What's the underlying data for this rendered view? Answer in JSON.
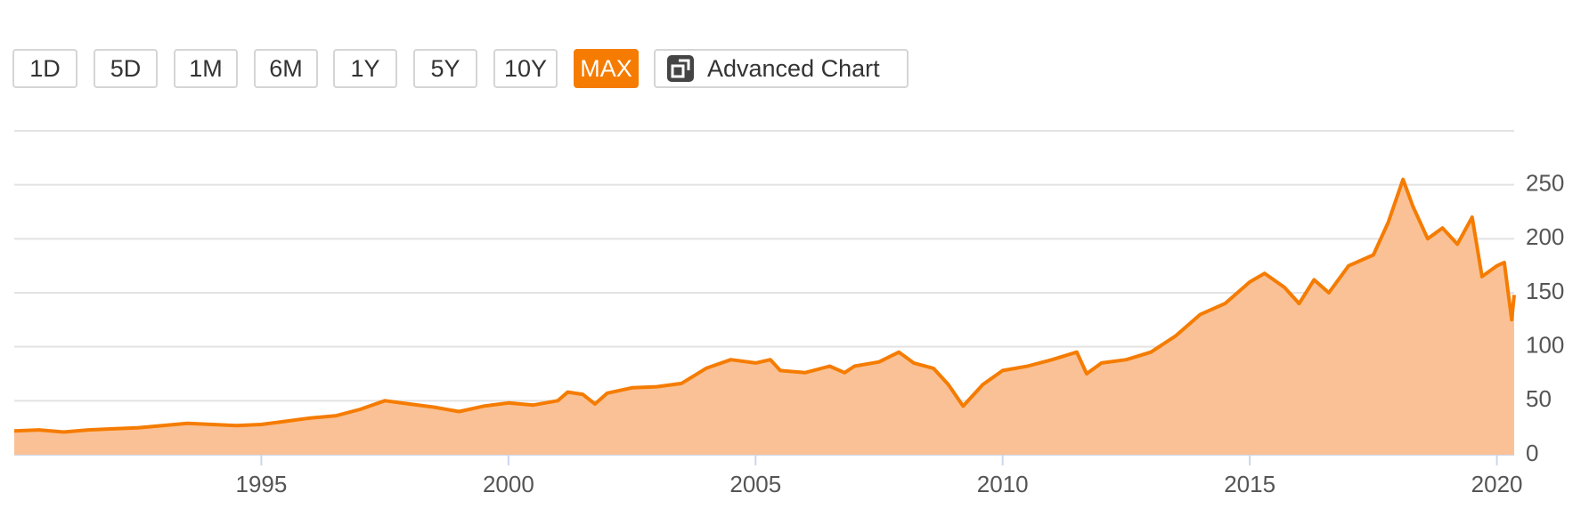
{
  "buttons": [
    "1D",
    "5D",
    "1M",
    "6M",
    "1Y",
    "5Y",
    "10Y",
    "MAX"
  ],
  "selected_button": 7,
  "advanced_chart": "Advanced Chart",
  "chart_data": {
    "type": "area",
    "color": "#f57c00",
    "fill": "#fbc196",
    "grid": true,
    "x": [
      1990.0,
      1990.5,
      1991.0,
      1991.5,
      1992.0,
      1992.5,
      1993.0,
      1993.5,
      1994.0,
      1994.5,
      1995.0,
      1995.5,
      1996.0,
      1996.5,
      1997.0,
      1997.5,
      1998.0,
      1998.5,
      1999.0,
      1999.5,
      2000.0,
      2000.5,
      2001.0,
      2001.2,
      2001.5,
      2001.75,
      2002.0,
      2002.5,
      2003.0,
      2003.5,
      2004.0,
      2004.5,
      2005.0,
      2005.3,
      2005.5,
      2006.0,
      2006.5,
      2006.8,
      2007.0,
      2007.5,
      2007.9,
      2008.2,
      2008.6,
      2008.9,
      2009.2,
      2009.6,
      2010.0,
      2010.5,
      2011.0,
      2011.5,
      2011.7,
      2012.0,
      2012.5,
      2013.0,
      2013.5,
      2014.0,
      2014.5,
      2015.0,
      2015.3,
      2015.7,
      2016.0,
      2016.3,
      2016.6,
      2017.0,
      2017.5,
      2017.8,
      2018.1,
      2018.3,
      2018.6,
      2018.9,
      2019.2,
      2019.5,
      2019.7,
      2020.0,
      2020.15,
      2020.3,
      2020.35
    ],
    "values": [
      22,
      23,
      21,
      23,
      24,
      25,
      27,
      29,
      28,
      27,
      28,
      31,
      34,
      36,
      42,
      50,
      47,
      44,
      40,
      45,
      48,
      46,
      50,
      58,
      56,
      47,
      57,
      62,
      63,
      66,
      80,
      88,
      85,
      88,
      78,
      76,
      82,
      76,
      82,
      86,
      95,
      85,
      80,
      65,
      45,
      65,
      78,
      82,
      88,
      95,
      75,
      85,
      88,
      95,
      110,
      130,
      140,
      160,
      168,
      155,
      140,
      162,
      150,
      175,
      185,
      215,
      255,
      230,
      200,
      210,
      195,
      220,
      165,
      175,
      178,
      125,
      148
    ],
    "xlim": [
      1990,
      2020.35
    ],
    "ylim": [
      0,
      300
    ],
    "xticks": [
      1995,
      2000,
      2005,
      2010,
      2015,
      2020
    ],
    "yticks": [
      0,
      50,
      100,
      150,
      200,
      250
    ]
  }
}
